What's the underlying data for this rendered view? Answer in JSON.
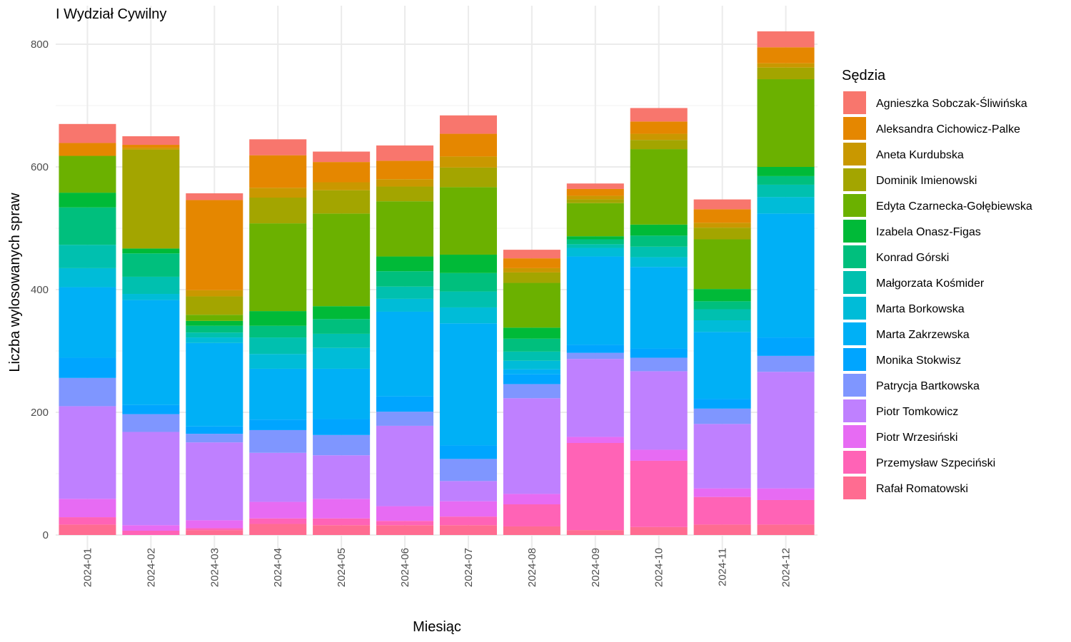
{
  "chart_data": {
    "type": "bar",
    "stacked": true,
    "title": "I Wydział Cywilny",
    "xlabel": "Miesiąc",
    "ylabel": "Liczba wylosowanych spraw",
    "ylim": [
      0,
      820
    ],
    "yticks": [
      0,
      200,
      400,
      600,
      800
    ],
    "grid": true,
    "legend_title": "Sędzia",
    "legend_position": "right",
    "categories": [
      "2024-01",
      "2024-02",
      "2024-03",
      "2024-04",
      "2024-05",
      "2024-06",
      "2024-07",
      "2024-08",
      "2024-09",
      "2024-10",
      "2024-11",
      "2024-12"
    ],
    "series": [
      {
        "name": "Agnieszka Sobczak-Śliwińska",
        "color": "#F8766D",
        "values": [
          31,
          14,
          11,
          26,
          17,
          25,
          30,
          14,
          9,
          22,
          16,
          26
        ]
      },
      {
        "name": "Aleksandra Cichowicz-Palke",
        "color": "#E58700",
        "values": [
          21,
          5,
          147,
          53,
          33,
          30,
          37,
          16,
          11,
          20,
          22,
          26
        ]
      },
      {
        "name": "Aneta Kurdubska",
        "color": "#C99800",
        "values": [
          0,
          3,
          10,
          16,
          13,
          12,
          18,
          7,
          6,
          10,
          8,
          7
        ]
      },
      {
        "name": "Dominik Imienowski",
        "color": "#A3A500",
        "values": [
          0,
          161,
          30,
          42,
          38,
          24,
          32,
          17,
          6,
          15,
          19,
          19
        ]
      },
      {
        "name": "Edyta Czarnecka-Gołębiewska",
        "color": "#6BB100",
        "values": [
          60,
          0,
          10,
          143,
          151,
          90,
          110,
          73,
          54,
          123,
          81,
          143
        ]
      },
      {
        "name": "Izabela Onasz-Figas",
        "color": "#00BA38",
        "values": [
          24,
          8,
          8,
          24,
          21,
          24,
          30,
          18,
          5,
          18,
          20,
          15
        ]
      },
      {
        "name": "Konrad Górski",
        "color": "#00BF7D",
        "values": [
          61,
          38,
          11,
          19,
          24,
          25,
          30,
          21,
          8,
          18,
          13,
          14
        ]
      },
      {
        "name": "Małgorzata Kośmider",
        "color": "#00C0AF",
        "values": [
          38,
          28,
          8,
          27,
          23,
          20,
          26,
          15,
          6,
          17,
          18,
          20
        ]
      },
      {
        "name": "Marta Borkowska",
        "color": "#00BCD8",
        "values": [
          31,
          10,
          9,
          24,
          34,
          21,
          26,
          14,
          14,
          16,
          19,
          27
        ]
      },
      {
        "name": "Marta Zakrzewska",
        "color": "#00B0F6",
        "values": [
          115,
          171,
          136,
          83,
          82,
          138,
          199,
          8,
          144,
          133,
          109,
          202
        ]
      },
      {
        "name": "Monika Stokwisz",
        "color": "#00A5FF",
        "values": [
          33,
          15,
          12,
          17,
          26,
          25,
          22,
          16,
          13,
          15,
          16,
          30
        ]
      },
      {
        "name": "Patrycja Bartkowska",
        "color": "#7F96FF",
        "values": [
          46,
          29,
          14,
          37,
          33,
          23,
          36,
          23,
          10,
          22,
          25,
          26
        ]
      },
      {
        "name": "Piotr Tomkowicz",
        "color": "#BF80FF",
        "values": [
          151,
          152,
          127,
          80,
          71,
          131,
          33,
          156,
          127,
          128,
          105,
          190
        ]
      },
      {
        "name": "Piotr Wrzesiński",
        "color": "#E76BF3",
        "values": [
          30,
          9,
          13,
          27,
          32,
          24,
          25,
          17,
          10,
          18,
          14,
          19
        ]
      },
      {
        "name": "Przemysław Szpeciński",
        "color": "#FF63B6",
        "values": [
          12,
          7,
          3,
          9,
          11,
          7,
          14,
          36,
          142,
          108,
          45,
          40
        ]
      },
      {
        "name": "Rafał Romatowski",
        "color": "#FF6C91",
        "values": [
          17,
          0,
          8,
          18,
          16,
          16,
          16,
          14,
          8,
          13,
          17,
          17
        ]
      }
    ]
  }
}
